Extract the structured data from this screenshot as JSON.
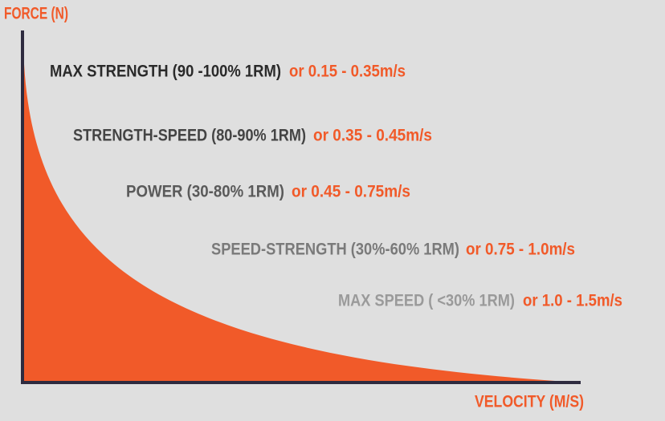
{
  "axes": {
    "y_label": "FORCE (N)",
    "x_label": "VELOCITY (M/S)"
  },
  "zones": [
    {
      "label": "MAX STRENGTH (90 -100% 1RM)",
      "range": "or 0.15 - 0.35m/s"
    },
    {
      "label": "STRENGTH-SPEED (80-90% 1RM)",
      "range": "or 0.35 - 0.45m/s"
    },
    {
      "label": "POWER (30-80% 1RM)",
      "range": "or 0.45 - 0.75m/s"
    },
    {
      "label": "SPEED-STRENGTH (30%-60% 1RM)",
      "range": "or 0.75 - 1.0m/s"
    },
    {
      "label": "MAX SPEED ( <30% 1RM)",
      "range": "or 1.0 - 1.5m/s"
    }
  ]
}
